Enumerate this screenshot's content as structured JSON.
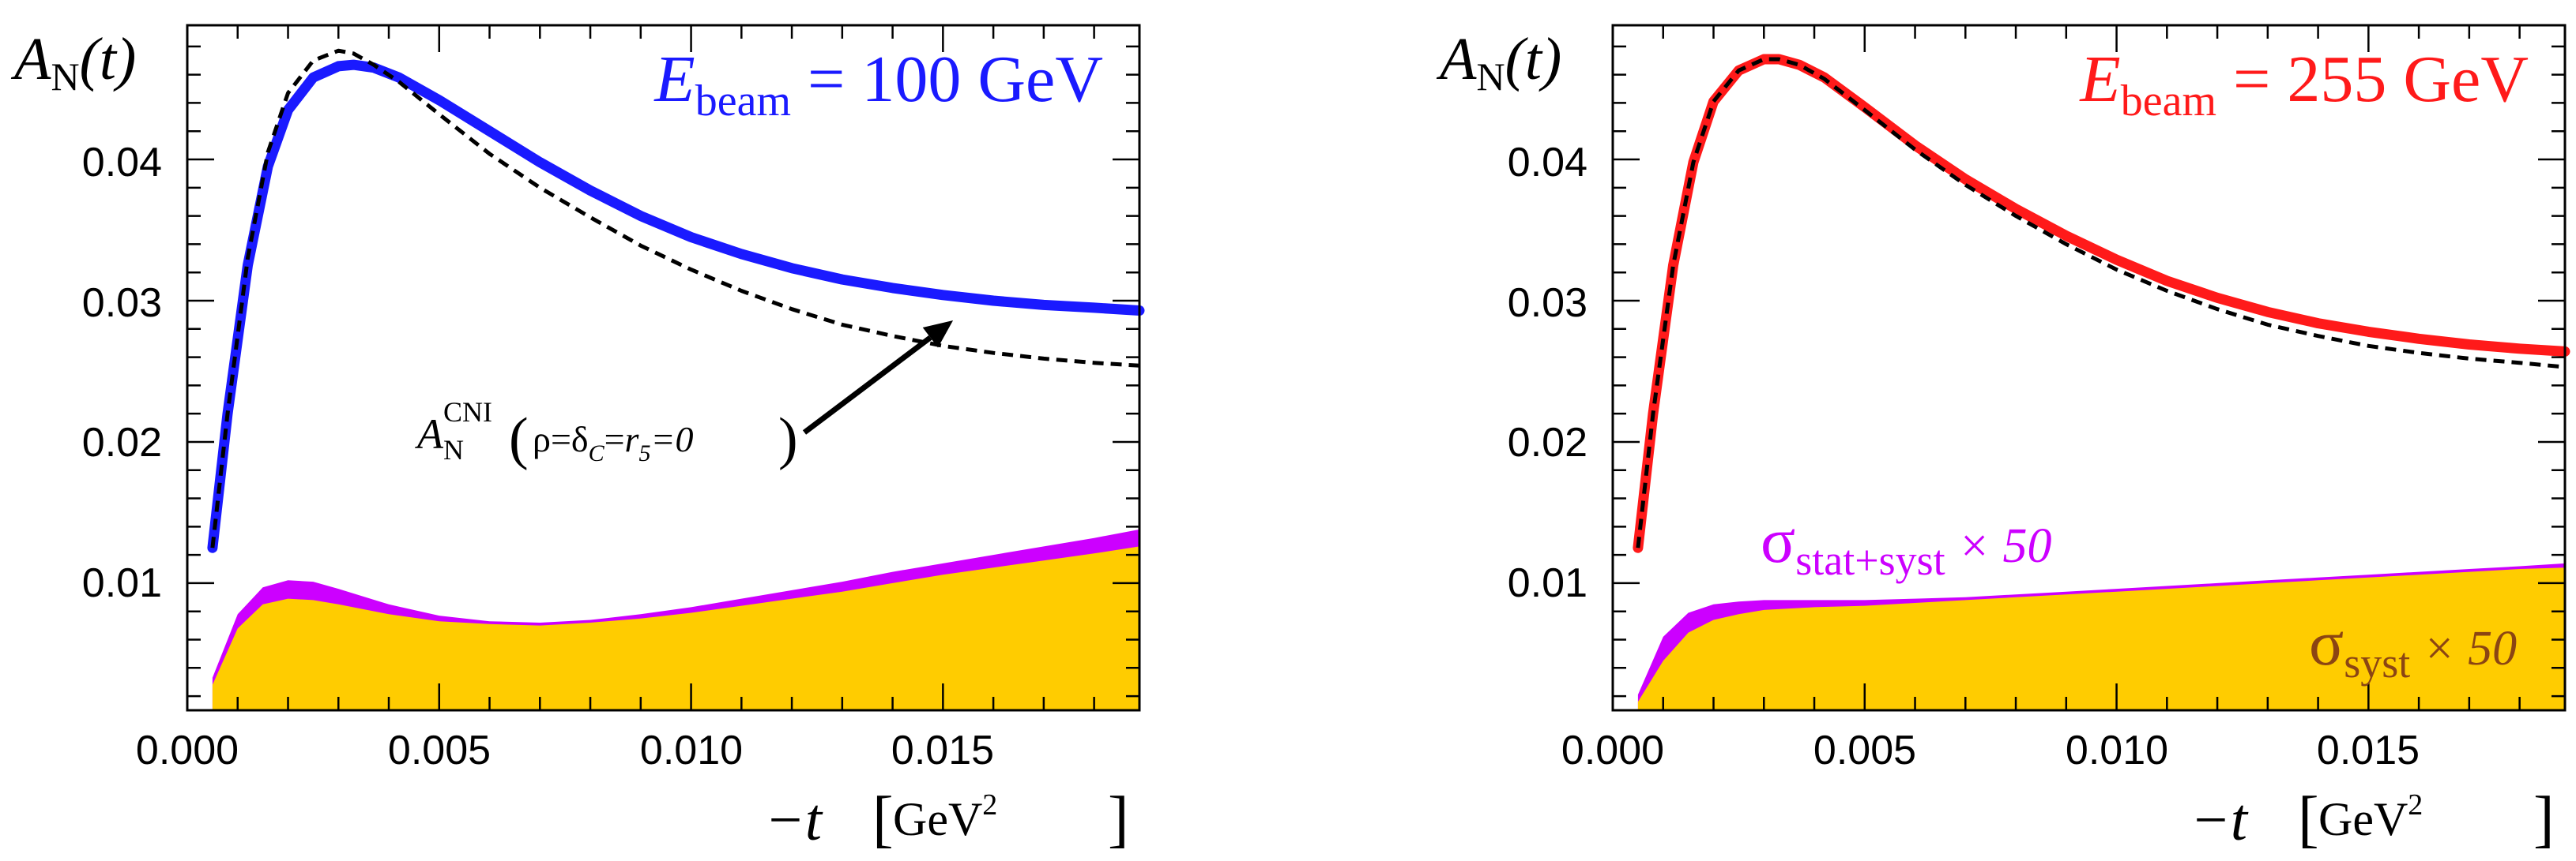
{
  "chart_data": [
    {
      "type": "area",
      "title_main": "E",
      "title_sub": "beam",
      "title_rest": " = 100 GeV",
      "title_color": "#1a1aff",
      "ylabel_main": "A",
      "ylabel_sub": "N",
      "ylabel_rest": "(t)",
      "xlabel_main": "−t",
      "xlabel_unit": "GeV",
      "xlabel_unit_sup": "2",
      "xlim": [
        0.0,
        0.0189
      ],
      "ylim": [
        0.001,
        0.0495
      ],
      "xticks": [
        0.0,
        0.005,
        0.01,
        0.015
      ],
      "xtick_labels": [
        "0.000",
        "0.005",
        "0.010",
        "0.015"
      ],
      "yticks": [
        0.01,
        0.02,
        0.03,
        0.04
      ],
      "ytick_labels": [
        "0.01",
        "0.02",
        "0.03",
        "0.04"
      ],
      "series": [
        {
          "name": "A_N fit band",
          "color": "#1a1aff",
          "x": [
            0.0005,
            0.0008,
            0.0012,
            0.0016,
            0.002,
            0.0025,
            0.003,
            0.0033,
            0.0037,
            0.0042,
            0.005,
            0.006,
            0.007,
            0.008,
            0.009,
            0.01,
            0.011,
            0.012,
            0.013,
            0.014,
            0.015,
            0.016,
            0.017,
            0.018,
            0.0189
          ],
          "y": [
            0.0125,
            0.022,
            0.0325,
            0.0395,
            0.0435,
            0.0458,
            0.0466,
            0.0467,
            0.0465,
            0.0458,
            0.0442,
            0.042,
            0.0398,
            0.0378,
            0.036,
            0.0345,
            0.0333,
            0.0323,
            0.0315,
            0.0309,
            0.0304,
            0.03,
            0.0297,
            0.0295,
            0.0293
          ]
        },
        {
          "name": "CNI reference (dashed)",
          "color": "#000000",
          "x": [
            0.0005,
            0.0008,
            0.0012,
            0.0016,
            0.002,
            0.0025,
            0.003,
            0.0033,
            0.0037,
            0.0042,
            0.005,
            0.006,
            0.007,
            0.008,
            0.009,
            0.01,
            0.011,
            0.012,
            0.013,
            0.014,
            0.015,
            0.016,
            0.017,
            0.018,
            0.0189
          ],
          "y": [
            0.0125,
            0.022,
            0.033,
            0.0405,
            0.0447,
            0.047,
            0.0477,
            0.0475,
            0.0467,
            0.0455,
            0.0432,
            0.0404,
            0.038,
            0.0359,
            0.0339,
            0.0322,
            0.0307,
            0.0294,
            0.0283,
            0.0275,
            0.0268,
            0.0263,
            0.0259,
            0.0256,
            0.0254
          ]
        },
        {
          "name": "sigma stat+syst x 50",
          "color": "#cc00ff",
          "x": [
            0.0005,
            0.001,
            0.0015,
            0.002,
            0.0025,
            0.003,
            0.004,
            0.005,
            0.006,
            0.007,
            0.008,
            0.009,
            0.01,
            0.011,
            0.012,
            0.013,
            0.014,
            0.015,
            0.016,
            0.017,
            0.018,
            0.0189
          ],
          "y": [
            0.0033,
            0.0078,
            0.0097,
            0.0102,
            0.0101,
            0.0096,
            0.0085,
            0.0077,
            0.0073,
            0.0072,
            0.0074,
            0.0078,
            0.0083,
            0.0089,
            0.0095,
            0.0101,
            0.0108,
            0.0114,
            0.012,
            0.0126,
            0.0132,
            0.0138
          ]
        },
        {
          "name": "sigma syst x 50",
          "color": "#ffcc00",
          "x": [
            0.0005,
            0.001,
            0.0015,
            0.002,
            0.0025,
            0.003,
            0.004,
            0.005,
            0.006,
            0.007,
            0.008,
            0.009,
            0.01,
            0.011,
            0.012,
            0.013,
            0.014,
            0.015,
            0.016,
            0.017,
            0.018,
            0.0189
          ],
          "y": [
            0.0028,
            0.0068,
            0.0085,
            0.0089,
            0.0088,
            0.0085,
            0.0078,
            0.0073,
            0.0071,
            0.007,
            0.0072,
            0.0075,
            0.0079,
            0.0084,
            0.0089,
            0.0094,
            0.01,
            0.0106,
            0.0111,
            0.0116,
            0.0121,
            0.0126
          ]
        }
      ],
      "annotation": {
        "text_main": "A",
        "text_sub": "N",
        "text_sup": "CNI",
        "text_args_a": "ρ=δ",
        "text_args_sub": "C",
        "text_args_b": "=",
        "text_args_c": "r",
        "text_args_c_sub": "5",
        "text_args_d": "=0",
        "arrow_to": [
          0.0152,
          0.0286
        ]
      }
    },
    {
      "type": "area",
      "title_main": "E",
      "title_sub": "beam",
      "title_rest": " = 255 GeV",
      "title_color": "#ff1a1a",
      "ylabel_main": "A",
      "ylabel_sub": "N",
      "ylabel_rest": "(t)",
      "xlabel_main": "−t",
      "xlabel_unit": "GeV",
      "xlabel_unit_sup": "2",
      "xlim": [
        0.0,
        0.0189
      ],
      "ylim": [
        0.001,
        0.0495
      ],
      "xticks": [
        0.0,
        0.005,
        0.01,
        0.015
      ],
      "xtick_labels": [
        "0.000",
        "0.005",
        "0.010",
        "0.015"
      ],
      "yticks": [
        0.01,
        0.02,
        0.03,
        0.04
      ],
      "ytick_labels": [
        "0.01",
        "0.02",
        "0.03",
        "0.04"
      ],
      "series": [
        {
          "name": "A_N fit band",
          "color": "#ff1a1a",
          "x": [
            0.0005,
            0.0008,
            0.0012,
            0.0016,
            0.002,
            0.0025,
            0.003,
            0.0033,
            0.0037,
            0.0042,
            0.005,
            0.006,
            0.007,
            0.008,
            0.009,
            0.01,
            0.011,
            0.012,
            0.013,
            0.014,
            0.015,
            0.016,
            0.017,
            0.018,
            0.0189
          ],
          "y": [
            0.0125,
            0.022,
            0.0325,
            0.0398,
            0.0441,
            0.0463,
            0.0471,
            0.0471,
            0.0467,
            0.0458,
            0.0437,
            0.041,
            0.0386,
            0.0365,
            0.0346,
            0.0329,
            0.0314,
            0.0302,
            0.0292,
            0.0284,
            0.0278,
            0.0273,
            0.0269,
            0.0266,
            0.0264
          ]
        },
        {
          "name": "CNI reference (dashed)",
          "color": "#000000",
          "x": [
            0.0005,
            0.0008,
            0.0012,
            0.0016,
            0.002,
            0.0025,
            0.003,
            0.0033,
            0.0037,
            0.0042,
            0.005,
            0.006,
            0.007,
            0.008,
            0.009,
            0.01,
            0.011,
            0.012,
            0.013,
            0.014,
            0.015,
            0.016,
            0.017,
            0.018,
            0.0189
          ],
          "y": [
            0.0125,
            0.022,
            0.0325,
            0.0398,
            0.0441,
            0.0463,
            0.0471,
            0.0471,
            0.0467,
            0.0457,
            0.0435,
            0.0407,
            0.0382,
            0.036,
            0.034,
            0.0322,
            0.0307,
            0.0294,
            0.0283,
            0.0275,
            0.0268,
            0.0263,
            0.0259,
            0.0256,
            0.0253
          ]
        },
        {
          "name": "sigma stat+syst x 50",
          "color": "#cc00ff",
          "x": [
            0.0005,
            0.001,
            0.0015,
            0.002,
            0.0025,
            0.003,
            0.004,
            0.005,
            0.006,
            0.007,
            0.008,
            0.009,
            0.01,
            0.011,
            0.012,
            0.013,
            0.014,
            0.015,
            0.016,
            0.017,
            0.018,
            0.0189
          ],
          "y": [
            0.0021,
            0.0062,
            0.0079,
            0.0085,
            0.0087,
            0.0088,
            0.0088,
            0.0088,
            0.0089,
            0.009,
            0.0092,
            0.0094,
            0.0096,
            0.0098,
            0.01,
            0.0102,
            0.0104,
            0.0106,
            0.0108,
            0.011,
            0.0112,
            0.0114
          ]
        },
        {
          "name": "sigma syst x 50",
          "color": "#ffcc00",
          "x": [
            0.0005,
            0.001,
            0.0015,
            0.002,
            0.0025,
            0.003,
            0.004,
            0.005,
            0.006,
            0.007,
            0.008,
            0.009,
            0.01,
            0.011,
            0.012,
            0.013,
            0.014,
            0.015,
            0.016,
            0.017,
            0.018,
            0.0189
          ],
          "y": [
            0.0016,
            0.0045,
            0.0065,
            0.0074,
            0.0078,
            0.0081,
            0.0083,
            0.0084,
            0.0086,
            0.0088,
            0.009,
            0.0092,
            0.0094,
            0.0096,
            0.0098,
            0.01,
            0.0102,
            0.0104,
            0.0106,
            0.0108,
            0.011,
            0.0111
          ]
        }
      ],
      "legend": {
        "statsyst_symbol": "σ",
        "statsyst_sub": "stat+syst",
        "statsyst_rest": " × 50",
        "statsyst_color": "#cc00ff",
        "syst_symbol": "σ",
        "syst_sub": "syst",
        "syst_rest": " × 50",
        "syst_color": "#8b4513"
      }
    }
  ]
}
